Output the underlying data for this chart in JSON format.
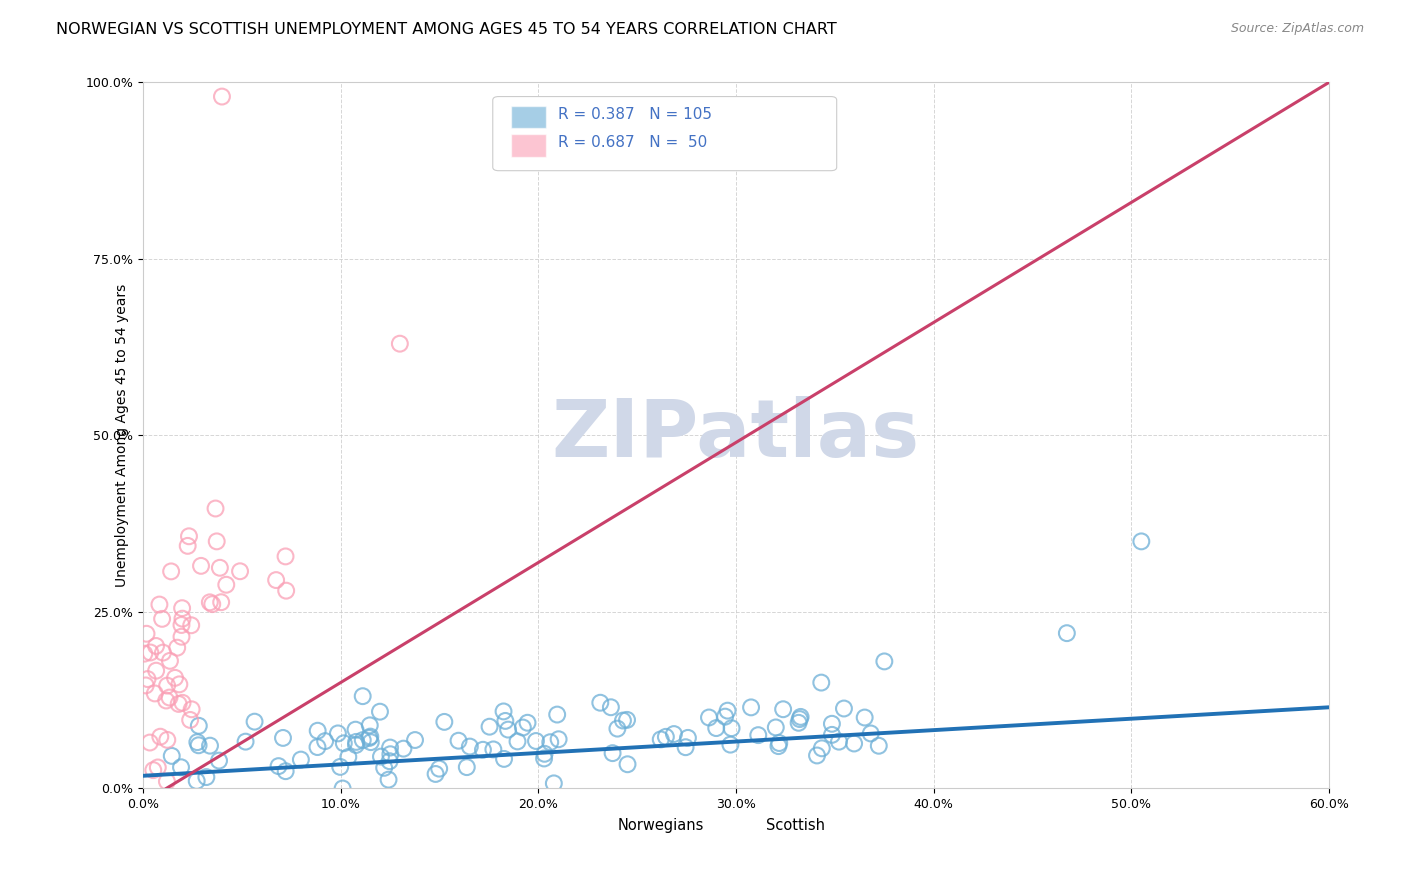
{
  "title": "NORWEGIAN VS SCOTTISH UNEMPLOYMENT AMONG AGES 45 TO 54 YEARS CORRELATION CHART",
  "source": "Source: ZipAtlas.com",
  "xlabel_ticks": [
    "0.0%",
    "10.0%",
    "20.0%",
    "30.0%",
    "40.0%",
    "50.0%",
    "60.0%"
  ],
  "ylabel_ticks": [
    "0.0%",
    "25.0%",
    "50.0%",
    "75.0%",
    "100.0%"
  ],
  "xlabel_vals": [
    0,
    0.1,
    0.2,
    0.3,
    0.4,
    0.5,
    0.6
  ],
  "ylabel_vals": [
    0,
    0.25,
    0.5,
    0.75,
    1.0
  ],
  "xlim": [
    0,
    0.6
  ],
  "ylim": [
    0,
    1.0
  ],
  "norwegian_R": 0.387,
  "norwegian_N": 105,
  "scottish_R": 0.687,
  "scottish_N": 50,
  "blue_color": "#6baed6",
  "pink_color": "#fa9fb5",
  "blue_line_color": "#2171b5",
  "pink_line_color": "#c9406a",
  "watermark": "ZIPatlas",
  "watermark_color": "#d0d8e8",
  "legend_label_norwegian": "Norwegians",
  "legend_label_scottish": "Scottish",
  "title_fontsize": 11.5,
  "label_fontsize": 10,
  "tick_fontsize": 9,
  "legend_value_color": "#4472c4",
  "legend_text_color": "#333333"
}
